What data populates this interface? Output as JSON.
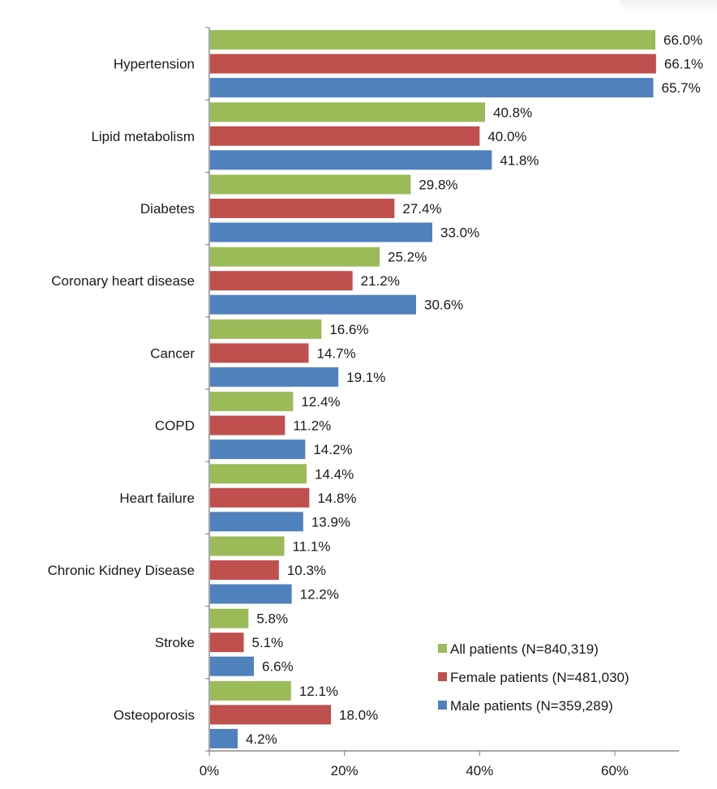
{
  "chart_data": {
    "type": "bar",
    "orientation": "horizontal",
    "title": "",
    "xlabel": "",
    "ylabel": "",
    "xlim": [
      0,
      70
    ],
    "x_ticks": [
      0,
      20,
      40,
      60
    ],
    "x_tick_labels": [
      "0%",
      "20%",
      "40%",
      "60%"
    ],
    "grid": false,
    "legend_position": "bottom-right",
    "categories": [
      "Hypertension",
      "Lipid metabolism",
      "Diabetes",
      "Coronary heart disease",
      "Cancer",
      "COPD",
      "Heart failure",
      "Chronic Kidney Disease",
      "Stroke",
      "Osteoporosis"
    ],
    "series": [
      {
        "name": "All patients (N=840,319)",
        "color": "#9BBB59",
        "values": [
          66.0,
          40.8,
          29.8,
          25.2,
          16.6,
          12.4,
          14.4,
          11.1,
          5.8,
          12.1
        ]
      },
      {
        "name": "Female patients (N=481,030)",
        "color": "#C0504D",
        "values": [
          66.1,
          40.0,
          27.4,
          21.2,
          14.7,
          11.2,
          14.8,
          10.3,
          5.1,
          18.0
        ]
      },
      {
        "name": "Male patients (N=359,289)",
        "color": "#4F81BD",
        "values": [
          65.7,
          41.8,
          33.0,
          30.6,
          19.1,
          14.2,
          13.9,
          12.2,
          6.6,
          4.2
        ]
      }
    ],
    "value_label_suffix": "%"
  }
}
